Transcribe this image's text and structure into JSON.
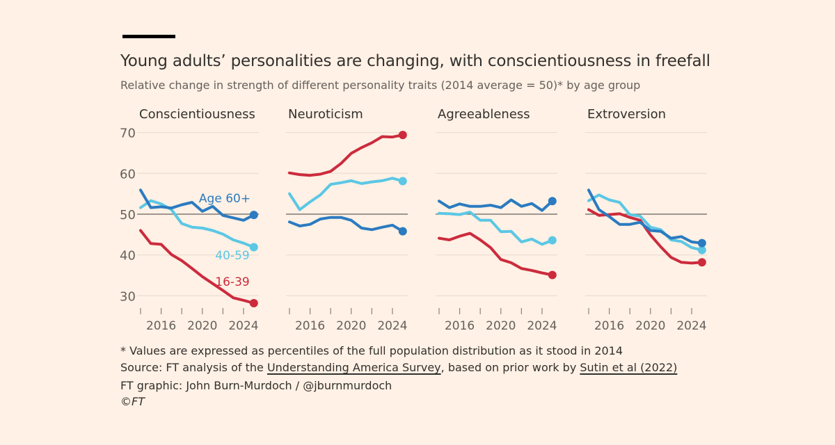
{
  "header": {
    "title": "Young adults’ personalities are changing, with conscientiousness in freefall",
    "subtitle": "Relative change in strength of different personality traits (2014 average = 50)* by age group"
  },
  "chart_data": {
    "type": "line",
    "x": [
      2014,
      2015,
      2016,
      2017,
      2018,
      2019,
      2020,
      2021,
      2022,
      2023,
      2024,
      2025
    ],
    "xticks": [
      2016,
      2020,
      2024
    ],
    "yticks": [
      30,
      40,
      50,
      60,
      70
    ],
    "ylim": [
      27,
      71
    ],
    "reference_line": 50,
    "grid": true,
    "series_colors": {
      "Age 60+": "#2b7bc0",
      "40-59": "#5bc7e5",
      "16-39": "#cc2b3d"
    },
    "series_labels": {
      "Age 60+": "Age 60+",
      "40-59": "40-59",
      "16-39": "16-39"
    },
    "panels": [
      {
        "title": "Conscientiousness",
        "series": [
          {
            "name": "Age 60+",
            "values": [
              55.9,
              51.6,
              51.8,
              51.5,
              52.3,
              52.9,
              50.7,
              51.9,
              49.7,
              49.1,
              48.5,
              49.8
            ]
          },
          {
            "name": "40-59",
            "values": [
              51.6,
              53.3,
              52.5,
              51.1,
              47.7,
              46.8,
              46.6,
              46.0,
              45.1,
              43.7,
              42.9,
              41.9
            ]
          },
          {
            "name": "16-39",
            "values": [
              46.0,
              42.8,
              42.6,
              40.1,
              38.6,
              36.7,
              34.7,
              33.0,
              31.3,
              29.5,
              28.9,
              28.2
            ]
          }
        ]
      },
      {
        "title": "Neuroticism",
        "series": [
          {
            "name": "Age 60+",
            "values": [
              48.1,
              47.1,
              47.5,
              48.8,
              49.2,
              49.2,
              48.5,
              46.6,
              46.2,
              46.8,
              47.3,
              45.8
            ]
          },
          {
            "name": "40-59",
            "values": [
              55.0,
              51.1,
              53.0,
              54.7,
              57.3,
              57.7,
              58.2,
              57.5,
              57.9,
              58.2,
              58.8,
              58.1
            ]
          },
          {
            "name": "16-39",
            "values": [
              60.1,
              59.7,
              59.5,
              59.8,
              60.5,
              62.4,
              64.9,
              66.3,
              67.5,
              69.0,
              68.9,
              69.4
            ]
          }
        ]
      },
      {
        "title": "Agreeableness",
        "series": [
          {
            "name": "Age 60+",
            "values": [
              53.2,
              51.6,
              52.5,
              51.9,
              51.9,
              52.2,
              51.6,
              53.5,
              51.9,
              52.6,
              50.9,
              53.2
            ]
          },
          {
            "name": "40-59",
            "values": [
              50.2,
              50.1,
              49.9,
              50.5,
              48.5,
              48.5,
              45.7,
              45.8,
              43.2,
              43.9,
              42.6,
              43.6
            ]
          },
          {
            "name": "16-39",
            "values": [
              44.1,
              43.7,
              44.6,
              45.3,
              43.7,
              41.8,
              38.9,
              38.1,
              36.7,
              36.2,
              35.6,
              35.1
            ]
          }
        ]
      },
      {
        "title": "Extroversion",
        "series": [
          {
            "name": "Age 60+",
            "values": [
              55.9,
              51.1,
              49.4,
              47.5,
              47.5,
              48.0,
              46.0,
              45.8,
              44.1,
              44.5,
              43.2,
              42.9
            ]
          },
          {
            "name": "40-59",
            "values": [
              53.3,
              54.7,
              53.5,
              52.9,
              49.9,
              49.5,
              46.8,
              46.2,
              43.7,
              43.3,
              41.8,
              41.2
            ]
          },
          {
            "name": "16-39",
            "values": [
              51.1,
              49.7,
              49.9,
              50.1,
              49.2,
              48.5,
              44.9,
              42.0,
              39.4,
              38.2,
              38.0,
              38.2
            ]
          }
        ]
      }
    ]
  },
  "footer": {
    "note": "* Values are expressed as percentiles of the full population distribution as it stood in 2014",
    "source_prefix": "Source: FT analysis of the ",
    "source_link1": "Understanding America Survey",
    "source_mid": ", based on prior work by ",
    "source_link2": "Sutin et al (2022)",
    "credit": "FT graphic: John Burn-Murdoch / @jburnmurdoch",
    "copyright": "©FT"
  }
}
